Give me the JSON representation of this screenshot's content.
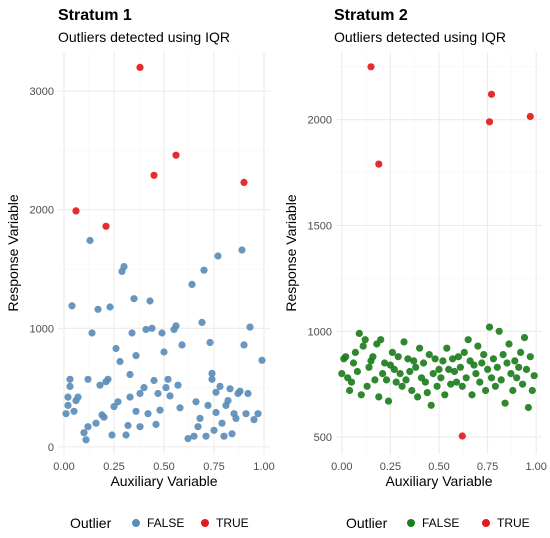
{
  "chart_data": [
    {
      "type": "scatter",
      "title": "Stratum 1",
      "subtitle": "Outliers detected using IQR",
      "xlabel": "Auxiliary Variable",
      "ylabel": "Response Variable",
      "xlim": [
        -0.03,
        1.03
      ],
      "ylim": [
        -60,
        3330
      ],
      "xticks": [
        0,
        0.25,
        0.5,
        0.75,
        1
      ],
      "xtick_labels": [
        "0.00",
        "0.25",
        "0.50",
        "0.75",
        "1.00"
      ],
      "yticks": [
        0,
        1000,
        2000,
        3000
      ],
      "ytick_labels": [
        "0",
        "1000",
        "2000",
        "3000"
      ],
      "grid": true,
      "series": [
        {
          "name": "FALSE",
          "color": "#5b8db8",
          "points": [
            [
              0.01,
              280
            ],
            [
              0.02,
              350
            ],
            [
              0.02,
              420
            ],
            [
              0.03,
              510
            ],
            [
              0.03,
              570
            ],
            [
              0.04,
              1190
            ],
            [
              0.05,
              300
            ],
            [
              0.06,
              390
            ],
            [
              0.07,
              420
            ],
            [
              0.1,
              120
            ],
            [
              0.11,
              60
            ],
            [
              0.12,
              170
            ],
            [
              0.12,
              570
            ],
            [
              0.13,
              1740
            ],
            [
              0.14,
              960
            ],
            [
              0.16,
              200
            ],
            [
              0.17,
              1160
            ],
            [
              0.18,
              520
            ],
            [
              0.19,
              270
            ],
            [
              0.2,
              250
            ],
            [
              0.21,
              550
            ],
            [
              0.22,
              570
            ],
            [
              0.23,
              1180
            ],
            [
              0.24,
              100
            ],
            [
              0.25,
              340
            ],
            [
              0.26,
              830
            ],
            [
              0.27,
              380
            ],
            [
              0.28,
              720
            ],
            [
              0.29,
              1480
            ],
            [
              0.3,
              1520
            ],
            [
              0.31,
              100
            ],
            [
              0.32,
              180
            ],
            [
              0.33,
              610
            ],
            [
              0.33,
              420
            ],
            [
              0.34,
              960
            ],
            [
              0.35,
              1250
            ],
            [
              0.36,
              770
            ],
            [
              0.36,
              300
            ],
            [
              0.38,
              450
            ],
            [
              0.38,
              170
            ],
            [
              0.4,
              500
            ],
            [
              0.41,
              990
            ],
            [
              0.42,
              280
            ],
            [
              0.43,
              1230
            ],
            [
              0.44,
              1000
            ],
            [
              0.45,
              560
            ],
            [
              0.46,
              190
            ],
            [
              0.47,
              450
            ],
            [
              0.48,
              310
            ],
            [
              0.49,
              960
            ],
            [
              0.5,
              800
            ],
            [
              0.51,
              500
            ],
            [
              0.52,
              570
            ],
            [
              0.53,
              430
            ],
            [
              0.55,
              990
            ],
            [
              0.56,
              1020
            ],
            [
              0.57,
              520
            ],
            [
              0.58,
              330
            ],
            [
              0.59,
              860
            ],
            [
              0.62,
              70
            ],
            [
              0.64,
              1370
            ],
            [
              0.65,
              90
            ],
            [
              0.66,
              380
            ],
            [
              0.67,
              170
            ],
            [
              0.68,
              240
            ],
            [
              0.69,
              1050
            ],
            [
              0.7,
              1490
            ],
            [
              0.71,
              90
            ],
            [
              0.72,
              350
            ],
            [
              0.73,
              880
            ],
            [
              0.74,
              620
            ],
            [
              0.74,
              570
            ],
            [
              0.75,
              140
            ],
            [
              0.76,
              290
            ],
            [
              0.76,
              460
            ],
            [
              0.77,
              1610
            ],
            [
              0.78,
              510
            ],
            [
              0.79,
              200
            ],
            [
              0.8,
              90
            ],
            [
              0.81,
              350
            ],
            [
              0.82,
              390
            ],
            [
              0.83,
              490
            ],
            [
              0.84,
              110
            ],
            [
              0.85,
              280
            ],
            [
              0.86,
              240
            ],
            [
              0.87,
              450
            ],
            [
              0.88,
              470
            ],
            [
              0.89,
              1660
            ],
            [
              0.9,
              860
            ],
            [
              0.91,
              280
            ],
            [
              0.92,
              450
            ],
            [
              0.93,
              1010
            ],
            [
              0.95,
              230
            ],
            [
              0.97,
              280
            ],
            [
              0.99,
              730
            ]
          ]
        },
        {
          "name": "TRUE",
          "color": "#e41a1c",
          "points": [
            [
              0.06,
              1990
            ],
            [
              0.21,
              1860
            ],
            [
              0.38,
              3200
            ],
            [
              0.45,
              2290
            ],
            [
              0.56,
              2460
            ],
            [
              0.9,
              2230
            ]
          ]
        }
      ]
    },
    {
      "type": "scatter",
      "title": "Stratum 2",
      "subtitle": "Outliers detected using IQR",
      "xlabel": "Auxiliary Variable",
      "ylabel": "Response Variable",
      "xlim": [
        -0.03,
        1.03
      ],
      "ylim": [
        420,
        2320
      ],
      "xticks": [
        0,
        0.25,
        0.5,
        0.75,
        1
      ],
      "xtick_labels": [
        "0.00",
        "0.25",
        "0.50",
        "0.75",
        "1.00"
      ],
      "yticks": [
        500,
        1000,
        1500,
        2000
      ],
      "ytick_labels": [
        "500",
        "1000",
        "1500",
        "2000"
      ],
      "grid": true,
      "series": [
        {
          "name": "FALSE",
          "color": "#1d7d1d",
          "points": [
            [
              0.0,
              800
            ],
            [
              0.01,
              870
            ],
            [
              0.02,
              880
            ],
            [
              0.03,
              780
            ],
            [
              0.04,
              720
            ],
            [
              0.05,
              760
            ],
            [
              0.06,
              850
            ],
            [
              0.07,
              900
            ],
            [
              0.08,
              810
            ],
            [
              0.09,
              990
            ],
            [
              0.1,
              700
            ],
            [
              0.11,
              930
            ],
            [
              0.12,
              960
            ],
            [
              0.13,
              740
            ],
            [
              0.14,
              830
            ],
            [
              0.15,
              860
            ],
            [
              0.16,
              880
            ],
            [
              0.17,
              770
            ],
            [
              0.18,
              940
            ],
            [
              0.19,
              690
            ],
            [
              0.2,
              960
            ],
            [
              0.21,
              800
            ],
            [
              0.22,
              850
            ],
            [
              0.23,
              770
            ],
            [
              0.24,
              670
            ],
            [
              0.25,
              840
            ],
            [
              0.26,
              900
            ],
            [
              0.27,
              820
            ],
            [
              0.28,
              760
            ],
            [
              0.29,
              880
            ],
            [
              0.3,
              800
            ],
            [
              0.31,
              740
            ],
            [
              0.32,
              950
            ],
            [
              0.33,
              770
            ],
            [
              0.34,
              870
            ],
            [
              0.35,
              810
            ],
            [
              0.36,
              720
            ],
            [
              0.37,
              860
            ],
            [
              0.38,
              830
            ],
            [
              0.39,
              690
            ],
            [
              0.4,
              920
            ],
            [
              0.41,
              780
            ],
            [
              0.42,
              850
            ],
            [
              0.43,
              760
            ],
            [
              0.44,
              710
            ],
            [
              0.45,
              890
            ],
            [
              0.46,
              650
            ],
            [
              0.47,
              800
            ],
            [
              0.48,
              870
            ],
            [
              0.49,
              740
            ],
            [
              0.5,
              820
            ],
            [
              0.51,
              780
            ],
            [
              0.52,
              860
            ],
            [
              0.53,
              700
            ],
            [
              0.54,
              920
            ],
            [
              0.55,
              820
            ],
            [
              0.56,
              750
            ],
            [
              0.57,
              870
            ],
            [
              0.58,
              810
            ],
            [
              0.59,
              760
            ],
            [
              0.6,
              880
            ],
            [
              0.61,
              830
            ],
            [
              0.62,
              740
            ],
            [
              0.63,
              900
            ],
            [
              0.64,
              780
            ],
            [
              0.65,
              960
            ],
            [
              0.66,
              860
            ],
            [
              0.67,
              700
            ],
            [
              0.68,
              840
            ],
            [
              0.69,
              800
            ],
            [
              0.7,
              930
            ],
            [
              0.71,
              760
            ],
            [
              0.72,
              850
            ],
            [
              0.73,
              890
            ],
            [
              0.74,
              720
            ],
            [
              0.75,
              820
            ],
            [
              0.76,
              1020
            ],
            [
              0.77,
              780
            ],
            [
              0.78,
              870
            ],
            [
              0.79,
              740
            ],
            [
              0.8,
              830
            ],
            [
              0.81,
              1000
            ],
            [
              0.82,
              770
            ],
            [
              0.83,
              890
            ],
            [
              0.84,
              660
            ],
            [
              0.85,
              850
            ],
            [
              0.86,
              940
            ],
            [
              0.87,
              800
            ],
            [
              0.88,
              720
            ],
            [
              0.89,
              860
            ],
            [
              0.9,
              780
            ],
            [
              0.91,
              830
            ],
            [
              0.92,
              900
            ],
            [
              0.93,
              750
            ],
            [
              0.94,
              970
            ],
            [
              0.95,
              820
            ],
            [
              0.96,
              640
            ],
            [
              0.97,
              880
            ],
            [
              0.98,
              720
            ],
            [
              0.99,
              790
            ]
          ]
        },
        {
          "name": "TRUE",
          "color": "#e41a1c",
          "points": [
            [
              0.15,
              2250
            ],
            [
              0.19,
              1790
            ],
            [
              0.62,
              505
            ],
            [
              0.76,
              1990
            ],
            [
              0.77,
              2120
            ],
            [
              0.97,
              2015
            ]
          ]
        }
      ]
    }
  ],
  "legends": [
    {
      "title": "Outlier",
      "entries": [
        {
          "label": "FALSE",
          "color": "#5b8db8"
        },
        {
          "label": "TRUE",
          "color": "#e41a1c"
        }
      ]
    },
    {
      "title": "Outlier",
      "entries": [
        {
          "label": "FALSE",
          "color": "#1d7d1d"
        },
        {
          "label": "TRUE",
          "color": "#e41a1c"
        }
      ]
    }
  ]
}
